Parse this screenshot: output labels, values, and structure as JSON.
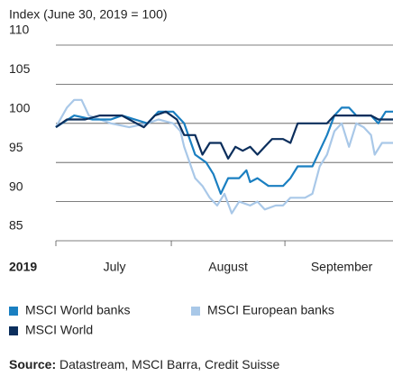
{
  "chart_data": {
    "type": "line",
    "y_axis_label": "Index (June 30, 2019 = 100)",
    "year_label": "2019",
    "xlim": [
      0,
      92
    ],
    "xticks": [
      {
        "value": 16,
        "label": "July"
      },
      {
        "value": 47,
        "label": "August"
      },
      {
        "value": 78,
        "label": "September"
      }
    ],
    "ylim": [
      85,
      110
    ],
    "yticks": [
      110,
      105,
      100,
      95,
      90,
      85
    ],
    "grid": true,
    "legend": "bottom",
    "series": [
      {
        "name": "MSCI European banks",
        "color": "#a9c8e8",
        "x": [
          0,
          3,
          5,
          7,
          9,
          12,
          15,
          20,
          25,
          28,
          32,
          34,
          35,
          38,
          40,
          42,
          44,
          46,
          48,
          50,
          53,
          55,
          57,
          60,
          62,
          64,
          68,
          70,
          72,
          74,
          76,
          78,
          80,
          82,
          84,
          86,
          87,
          89,
          92
        ],
        "values": [
          99.5,
          102,
          103,
          103,
          101,
          100.5,
          100,
          99.5,
          100,
          100.5,
          100,
          99,
          97,
          93,
          92,
          90.5,
          89.5,
          91,
          88.5,
          90,
          89.5,
          90,
          89,
          89.5,
          89.5,
          90.5,
          90.5,
          91,
          94.5,
          96,
          99,
          100,
          97,
          100,
          99.5,
          98.5,
          96,
          97.5,
          97.5
        ]
      },
      {
        "name": "MSCI World banks",
        "color": "#1a7fc1",
        "x": [
          0,
          5,
          10,
          15,
          18,
          25,
          28,
          32,
          35,
          38,
          41,
          43,
          45,
          47,
          50,
          52,
          53,
          55,
          58,
          62,
          64,
          66,
          70,
          72,
          74,
          76,
          78,
          80,
          82,
          86,
          88,
          90,
          92
        ],
        "values": [
          99.5,
          101,
          100.5,
          100.5,
          101,
          100,
          101.5,
          101.5,
          100,
          96,
          95,
          93.5,
          91,
          93,
          93,
          94,
          92.5,
          93,
          92,
          92,
          93,
          94.5,
          94.5,
          96.5,
          98.5,
          101,
          102,
          102,
          101,
          101,
          100,
          101.5,
          101.5
        ]
      },
      {
        "name": "MSCI World",
        "color": "#0b2e5c",
        "x": [
          0,
          3,
          8,
          12,
          18,
          22,
          24,
          27,
          30,
          33,
          35,
          38,
          40,
          42,
          45,
          47,
          49,
          51,
          53,
          55,
          57,
          59,
          62,
          64,
          66,
          70,
          74,
          76,
          80,
          86,
          88,
          92
        ],
        "values": [
          99.5,
          100.5,
          100.5,
          101,
          101,
          100,
          99.5,
          101,
          101.5,
          100.5,
          98.5,
          98.5,
          96,
          97.5,
          97.5,
          95.5,
          97,
          96.5,
          97,
          96,
          97,
          98,
          98,
          97.5,
          100,
          100,
          100,
          101,
          101,
          101,
          100.5,
          100.5
        ]
      }
    ],
    "legend_order": [
      1,
      0,
      2
    ],
    "source_label": "Source:",
    "source": "Datastream, MSCI Barra, Credit Suisse"
  }
}
